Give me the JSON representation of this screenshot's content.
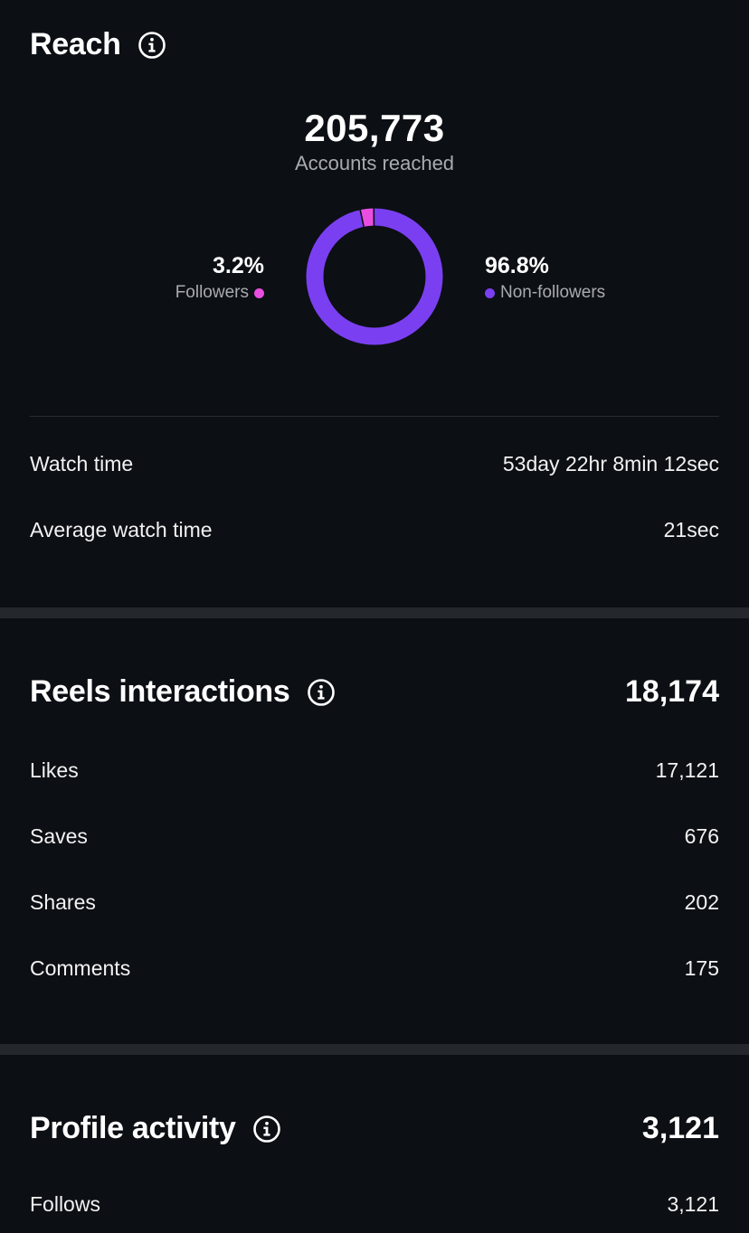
{
  "reach": {
    "title": "Reach",
    "accounts_reached": "205,773",
    "accounts_reached_label": "Accounts reached",
    "followers_pct": "3.2%",
    "followers_label": "Followers",
    "non_followers_pct": "96.8%",
    "non_followers_label": "Non-followers",
    "followers_fraction": 0.032,
    "colors": {
      "followers": "#e94ee0",
      "non_followers": "#7b3ff2"
    },
    "watch_time_label": "Watch time",
    "watch_time_value": "53day 22hr 8min 12sec",
    "avg_watch_time_label": "Average watch time",
    "avg_watch_time_value": "21sec"
  },
  "reels": {
    "title": "Reels interactions",
    "total": "18,174",
    "rows": [
      {
        "label": "Likes",
        "value": "17,121"
      },
      {
        "label": "Saves",
        "value": "676"
      },
      {
        "label": "Shares",
        "value": "202"
      },
      {
        "label": "Comments",
        "value": "175"
      }
    ]
  },
  "profile": {
    "title": "Profile activity",
    "total": "3,121",
    "follows_label": "Follows",
    "follows_value": "3,121"
  },
  "icons": {
    "info": "info-icon"
  }
}
